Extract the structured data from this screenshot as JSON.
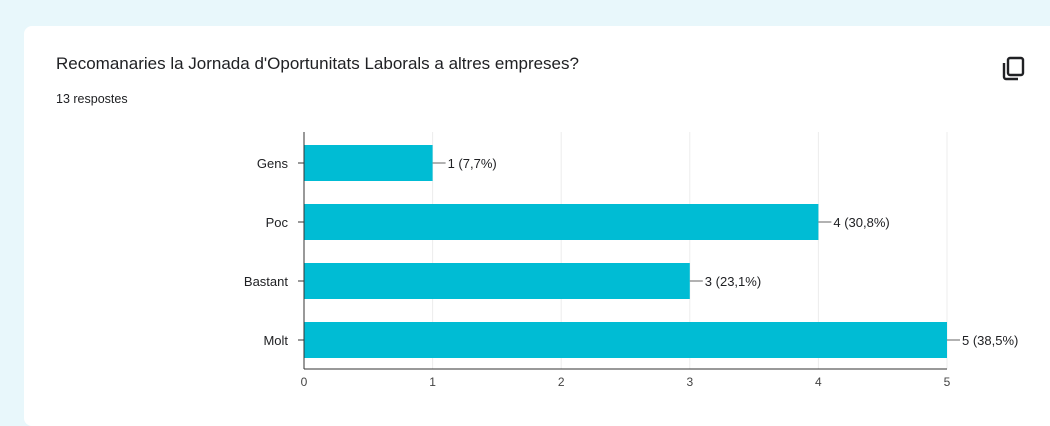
{
  "question": {
    "title": "Recomanaries la Jornada d'Oportunitats Laborals a altres empreses?",
    "responses": "13 respostes"
  },
  "icons": {
    "copy": "copy-icon"
  },
  "colors": {
    "bar": "#00bcd4",
    "grid": "#ececec",
    "axis": "#333333",
    "background": "#e8f7fb"
  },
  "chart_data": {
    "type": "bar",
    "orientation": "horizontal",
    "categories": [
      "Gens",
      "Poc",
      "Bastant",
      "Molt"
    ],
    "values": [
      1,
      4,
      3,
      5
    ],
    "data_labels": [
      "1 (7,7%)",
      "4 (30,8%)",
      "3 (23,1%)",
      "5 (38,5%)"
    ],
    "xlim": [
      0,
      5
    ],
    "xticks": [
      0,
      1,
      2,
      3,
      4,
      5
    ],
    "grid": true,
    "title": "Recomanaries la Jornada d'Oportunitats Laborals a altres empreses?"
  }
}
